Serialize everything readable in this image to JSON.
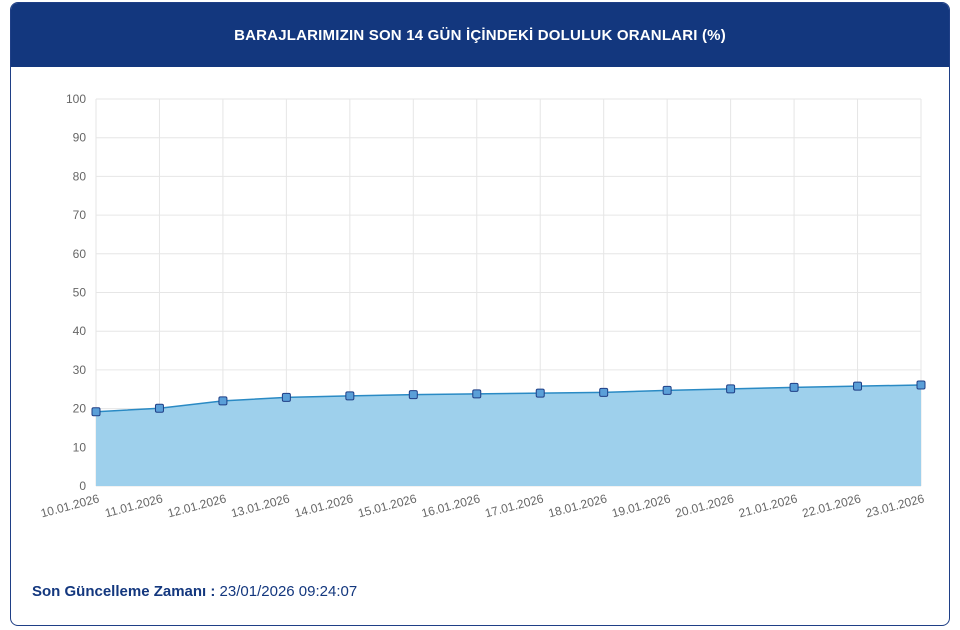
{
  "header": {
    "title": "BARAJLARIMIZIN SON 14 GÜN İÇİNDEKİ DOLULUK ORANLARI (%)"
  },
  "footer": {
    "label": "Son Güncelleme Zamanı :",
    "value": " 23/01/2026 09:24:07"
  },
  "colors": {
    "header_bg": "#13377e",
    "area_fill": "#9ed0ec",
    "line": "#2a8ac4",
    "marker_fill": "#5a9fd8",
    "marker_stroke": "#1f3f86"
  },
  "chart_data": {
    "type": "area",
    "title": "BARAJLARIMIZIN SON 14 GÜN İÇİNDEKİ DOLULUK ORANLARI (%)",
    "xlabel": "",
    "ylabel": "",
    "ylim": [
      0,
      100
    ],
    "yticks": [
      0,
      10,
      20,
      30,
      40,
      50,
      60,
      70,
      80,
      90,
      100
    ],
    "grid": true,
    "legend": "none",
    "categories": [
      "10.01.2026",
      "11.01.2026",
      "12.01.2026",
      "13.01.2026",
      "14.01.2026",
      "15.01.2026",
      "16.01.2026",
      "17.01.2026",
      "18.01.2026",
      "19.01.2026",
      "20.01.2026",
      "21.01.2026",
      "22.01.2026",
      "23.01.2026"
    ],
    "values": [
      19.2,
      20.1,
      22.0,
      22.9,
      23.3,
      23.6,
      23.8,
      24.0,
      24.2,
      24.7,
      25.1,
      25.5,
      25.8,
      26.1
    ]
  }
}
